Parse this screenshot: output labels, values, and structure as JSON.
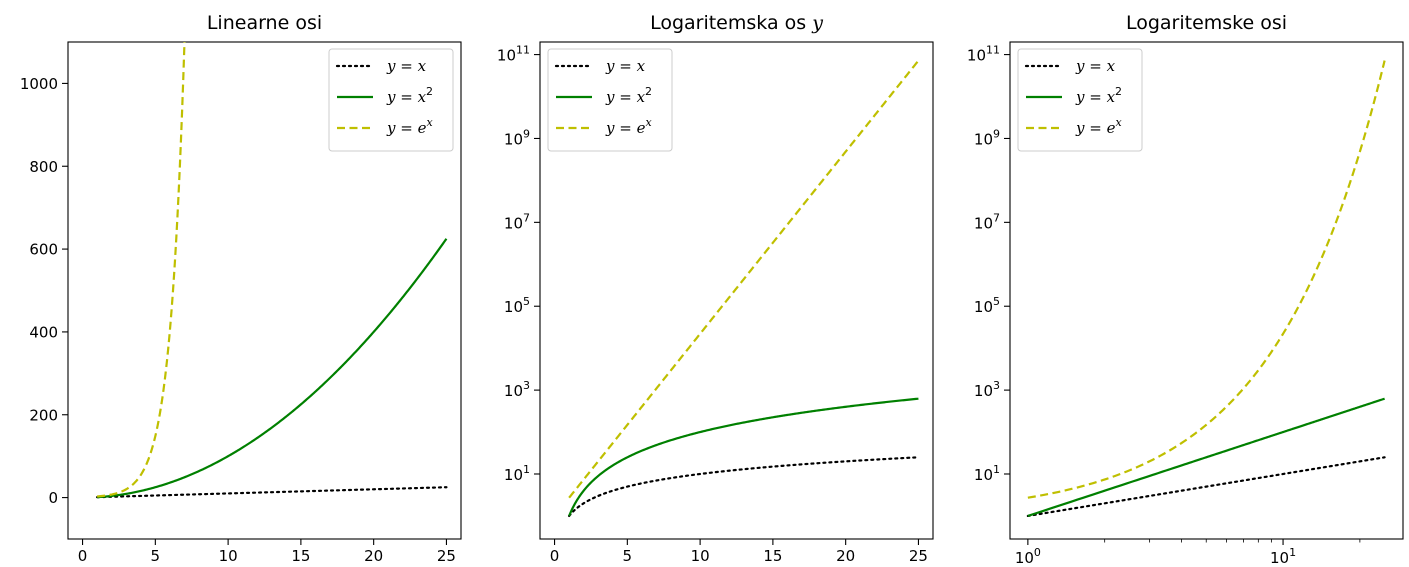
{
  "chart_data": [
    {
      "type": "line",
      "title": "Linearne osi",
      "title_var": "",
      "xscale": "linear",
      "yscale": "linear",
      "xlim": [
        -1,
        26
      ],
      "ylim": [
        -100,
        1100
      ],
      "xticks": [
        0,
        5,
        10,
        15,
        20,
        25
      ],
      "yticks": [
        0,
        200,
        400,
        600,
        800,
        1000
      ],
      "grid": false,
      "legend": "top-right",
      "x_range": [
        1,
        25
      ],
      "series": [
        {
          "name": "y = x",
          "function": "x",
          "color": "#000000",
          "style": "dotted"
        },
        {
          "name": "y = x^2",
          "function": "x^2",
          "color": "#008000",
          "style": "solid"
        },
        {
          "name": "y = e^x",
          "function": "e^x",
          "color": "#bfbf00",
          "style": "dashed"
        }
      ]
    },
    {
      "type": "line",
      "title": "Logaritemska os",
      "title_var": "y",
      "xscale": "linear",
      "yscale": "log",
      "xlim": [
        -1,
        26
      ],
      "ylim_exp": [
        -0.55,
        11.3
      ],
      "xticks": [
        0,
        5,
        10,
        15,
        20,
        25
      ],
      "yticks_exp": [
        1,
        3,
        5,
        7,
        9,
        11
      ],
      "grid": false,
      "legend": "top-left",
      "x_range": [
        1,
        25
      ],
      "series": [
        {
          "name": "y = x",
          "function": "x",
          "color": "#000000",
          "style": "dotted"
        },
        {
          "name": "y = x^2",
          "function": "x^2",
          "color": "#008000",
          "style": "solid"
        },
        {
          "name": "y = e^x",
          "function": "e^x",
          "color": "#bfbf00",
          "style": "dashed"
        }
      ]
    },
    {
      "type": "line",
      "title": "Logaritemske osi",
      "title_var": "",
      "xscale": "log",
      "yscale": "log",
      "xlim_exp": [
        -0.07,
        1.47
      ],
      "ylim_exp": [
        -0.55,
        11.3
      ],
      "xticks_exp": [
        0,
        1
      ],
      "yticks_exp": [
        1,
        3,
        5,
        7,
        9,
        11
      ],
      "grid": false,
      "legend": "top-left",
      "x_range": [
        1,
        25
      ],
      "series": [
        {
          "name": "y = x",
          "function": "x",
          "color": "#000000",
          "style": "dotted"
        },
        {
          "name": "y = x^2",
          "function": "x^2",
          "color": "#008000",
          "style": "solid"
        },
        {
          "name": "y = e^x",
          "function": "e^x",
          "color": "#bfbf00",
          "style": "dashed"
        }
      ]
    }
  ]
}
